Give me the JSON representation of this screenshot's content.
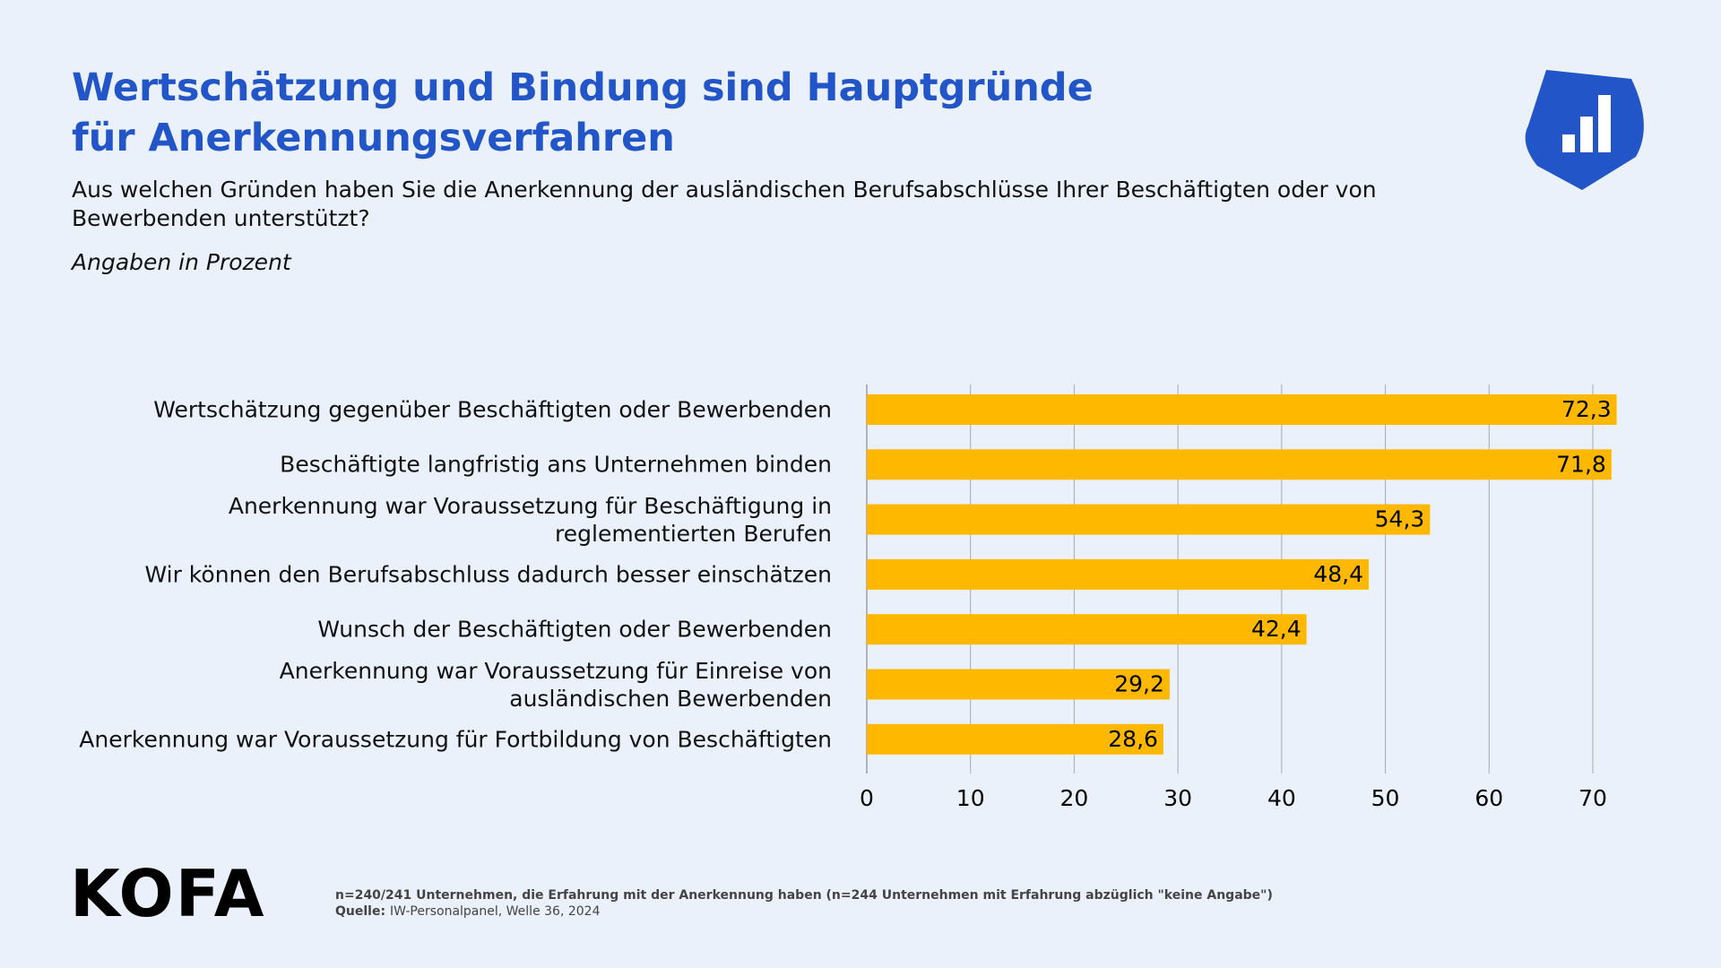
{
  "chart_data": {
    "type": "hbar",
    "title": "Wertschätzung und Bindung sind Hauptgründe für Anerkennungsverfahren",
    "subtitle": "Aus welchen Gründen haben Sie die Anerkennung der ausländischen Berufsabschlüsse Ihrer Beschäftigten oder von Bewerbenden unterstützt?",
    "unit_note": "Angaben in Prozent",
    "categories": [
      "Wertschätzung gegenüber Beschäftigten oder Bewerbenden",
      "Beschäftigte langfristig ans Unternehmen binden",
      "Anerkennung war Voraussetzung für Beschäftigung in\nreglementierten Berufen",
      "Wir können den Berufsabschluss dadurch besser einschätzen",
      "Wunsch der Beschäftigten oder Bewerbenden",
      "Anerkennung war Voraussetzung für Einreise von\nausländischen Bewerbenden",
      "Anerkennung war Voraussetzung für Fortbildung von Beschäftigten"
    ],
    "values": [
      72.3,
      71.8,
      54.3,
      48.4,
      42.4,
      29.2,
      28.6
    ],
    "value_labels": [
      "72,3",
      "71,8",
      "54,3",
      "48,4",
      "42,4",
      "29,2",
      "28,6"
    ],
    "color": "#ffb800",
    "xlim": [
      0,
      73
    ],
    "xticks": [
      0,
      10,
      20,
      30,
      40,
      50,
      60,
      70
    ],
    "grid": true,
    "note": "n=240/241 Unternehmen, die Erfahrung mit der Anerkennung haben (n=244 Unternehmen mit Erfahrung abzüglich \"keine Angabe\")",
    "source_label": "Quelle:",
    "source": "IW-Personalpanel, Welle 36, 2024",
    "logo": "KOFA"
  }
}
